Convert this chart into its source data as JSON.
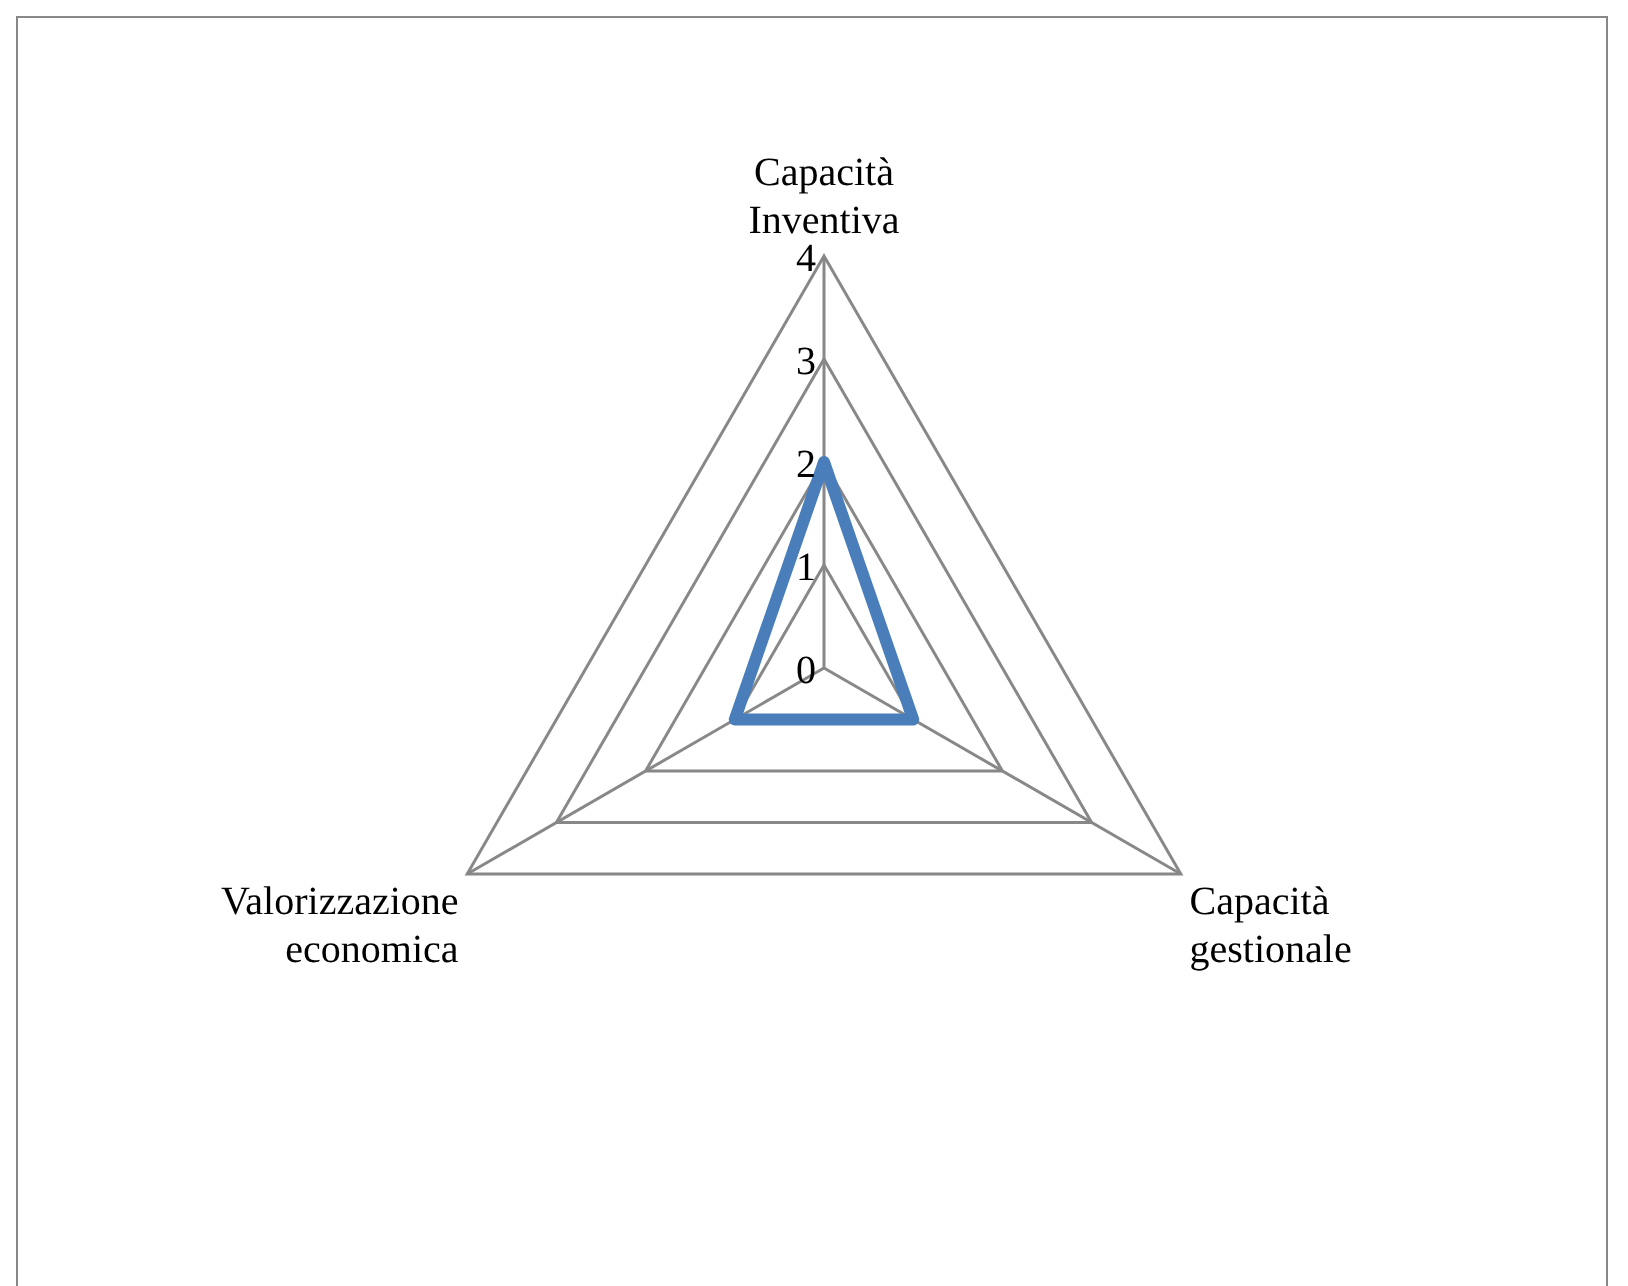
{
  "chart_data": {
    "type": "radar",
    "categories": [
      "Capacità Inventiva",
      "Capacità gestionale",
      "Valorizzazione economica"
    ],
    "series": [
      {
        "color": "#4a7ebb",
        "values": [
          2,
          1,
          1
        ]
      }
    ],
    "ylim": [
      0,
      4
    ],
    "yticks": [
      0,
      1,
      2,
      3,
      4
    ],
    "grid": true,
    "legend": false,
    "marker": "none"
  }
}
